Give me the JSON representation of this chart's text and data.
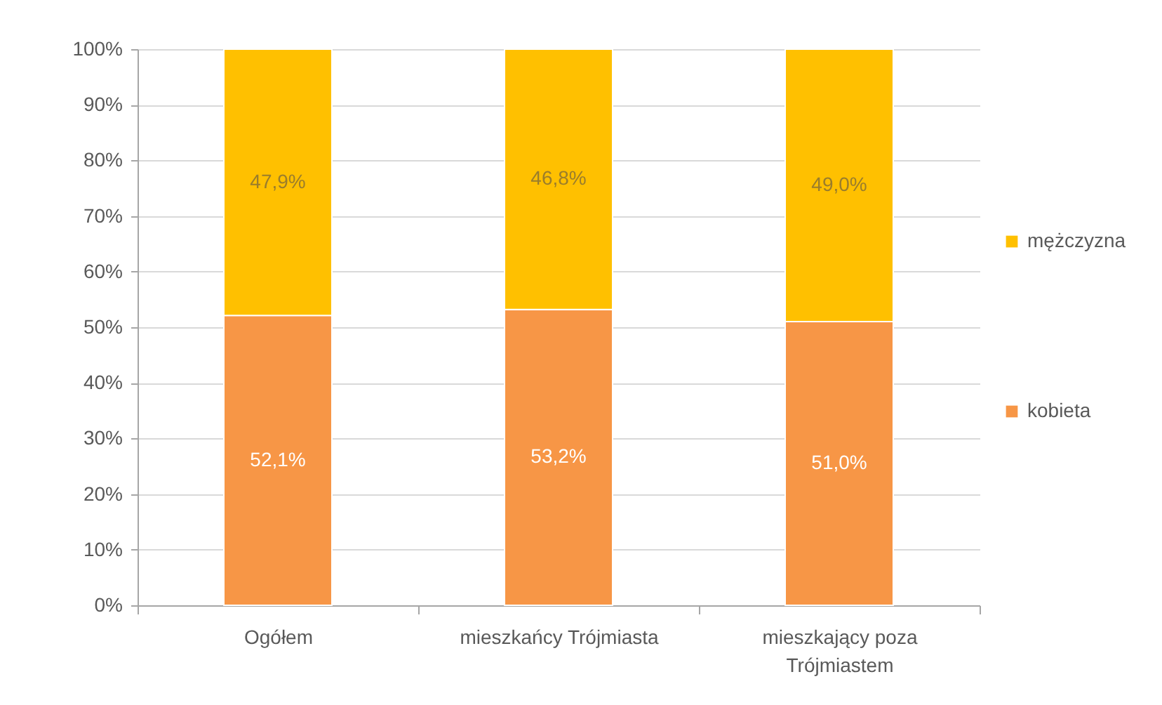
{
  "chart_data": {
    "type": "bar",
    "stacked": true,
    "categories": [
      "Ogółem",
      "mieszkańcy Trójmiasta",
      "mieszkający poza Trójmiastem"
    ],
    "series": [
      {
        "name": "kobieta",
        "color": "#f79646",
        "values": [
          52.1,
          53.2,
          51.0
        ],
        "value_labels": [
          "52,1%",
          "53,2%",
          "51,0%"
        ]
      },
      {
        "name": "mężczyzna",
        "color": "#ffc000",
        "values": [
          47.9,
          46.8,
          49.0
        ],
        "value_labels": [
          "47,9%",
          "46,8%",
          "49,0%"
        ]
      }
    ],
    "ylim": [
      0,
      100
    ],
    "yticks": [
      {
        "value": 0,
        "label": "0%"
      },
      {
        "value": 10,
        "label": "10%"
      },
      {
        "value": 20,
        "label": "20%"
      },
      {
        "value": 30,
        "label": "30%"
      },
      {
        "value": 40,
        "label": "40%"
      },
      {
        "value": 50,
        "label": "50%"
      },
      {
        "value": 60,
        "label": "60%"
      },
      {
        "value": 70,
        "label": "70%"
      },
      {
        "value": 80,
        "label": "80%"
      },
      {
        "value": 90,
        "label": "90%"
      },
      {
        "value": 100,
        "label": "100%"
      }
    ],
    "grid": "y",
    "legend": "right"
  }
}
